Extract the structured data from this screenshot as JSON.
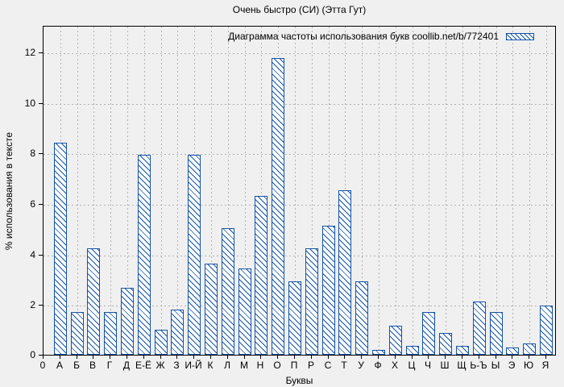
{
  "title": "Очень быстро (СИ) (Этта Гут)",
  "legend_label": "Диаграмма частоты использования букв coollib.net/b/772401",
  "x_axis": {
    "label": "Буквы",
    "origin_tick": "0"
  },
  "y_axis": {
    "label": "% использования в тексте",
    "ticks": [
      0,
      2,
      4,
      6,
      8,
      10,
      12
    ]
  },
  "colors": {
    "bar_line": "#1353a8",
    "bar_fill": "#ffffff",
    "grid": "#b2b2b2",
    "axis": "#000000",
    "background": "#f0f0f0",
    "text": "#000000"
  },
  "chart_data": {
    "type": "bar",
    "title": "Очень быстро (СИ) (Этта Гут)",
    "legend": "Диаграмма частоты использования букв coollib.net/b/772401",
    "legend_position": "top-right-inside",
    "xlabel": "Буквы",
    "ylabel": "% использования в тексте",
    "ylim": [
      0,
      13.05
    ],
    "yticks": [
      0,
      2,
      4,
      6,
      8,
      10,
      12
    ],
    "grid": true,
    "hatch": "diagonal-backslash",
    "categories": [
      "А",
      "Б",
      "В",
      "Г",
      "Д",
      "Е-Ё",
      "Ж",
      "З",
      "И-Й",
      "К",
      "Л",
      "М",
      "Н",
      "О",
      "П",
      "Р",
      "С",
      "Т",
      "У",
      "Ф",
      "Х",
      "Ц",
      "Ч",
      "Ш",
      "Щ",
      "Ь-Ъ",
      "Ы",
      "Э",
      "Ю",
      "Я"
    ],
    "values": [
      8.4,
      1.7,
      4.2,
      1.7,
      2.65,
      7.9,
      1.0,
      1.8,
      7.9,
      3.6,
      5.0,
      3.4,
      6.3,
      11.75,
      2.9,
      4.2,
      5.1,
      6.5,
      2.9,
      0.2,
      1.15,
      0.35,
      1.7,
      0.85,
      0.35,
      2.1,
      1.7,
      0.3,
      0.45,
      1.95
    ]
  }
}
